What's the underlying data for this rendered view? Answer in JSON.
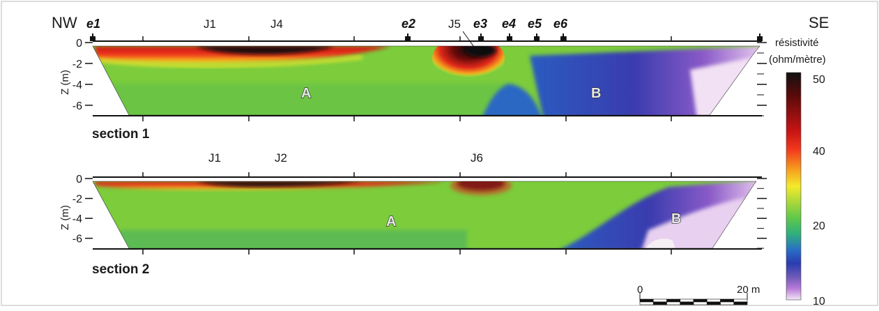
{
  "chart_data": {
    "type": "heatmap",
    "orientation_left": "NW",
    "orientation_right": "SE",
    "ylabel": "Z (m)",
    "yticks": [
      "0",
      "-2",
      "-4",
      "-6"
    ],
    "ylim": [
      -7,
      0
    ],
    "colorbar": {
      "title_line1": "résistivité",
      "title_line2": "(ohm/mètre)",
      "ticks": [
        "50",
        "40",
        "20",
        "10"
      ],
      "range": [
        10,
        50
      ]
    },
    "scalebar": {
      "start_label": "0",
      "end_label": "20 m"
    },
    "electrodes": [
      "e1",
      "e2",
      "e3",
      "e4",
      "e5",
      "e6"
    ],
    "sections": [
      {
        "name": "section 1",
        "markers": [
          "J1",
          "J4",
          "J5"
        ],
        "zones": [
          "A",
          "B"
        ]
      },
      {
        "name": "section 2",
        "markers": [
          "J1",
          "J2",
          "J6"
        ],
        "zones": [
          "A",
          "B"
        ]
      }
    ]
  }
}
